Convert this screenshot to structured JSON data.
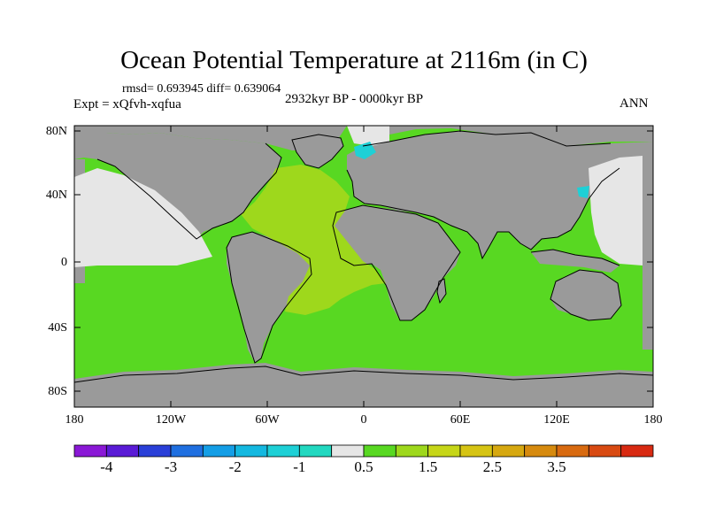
{
  "title": "Ocean Potential Temperature at 2116m (in C)",
  "stats": "rmsd= 0.693945 diff= 0.639064",
  "experiment": "Expt = xQfvh-xqfua",
  "period": "2932kyr BP - 0000kyr BP",
  "season": "ANN",
  "y_ticks": [
    "80N",
    "40N",
    "0",
    "40S",
    "80S"
  ],
  "x_ticks": [
    "180",
    "120W",
    "60W",
    "0",
    "60E",
    "120E",
    "180"
  ],
  "colorbar": {
    "colors": [
      "#8a18d6",
      "#5a1bd6",
      "#2a3fd8",
      "#1f6fe0",
      "#149ee6",
      "#14b8e0",
      "#1ed0d6",
      "#22d8c0",
      "#e6e6e6",
      "#58d822",
      "#9ed81c",
      "#c6d618",
      "#d6c414",
      "#d6a810",
      "#d68a0e",
      "#d86a10",
      "#d84a12",
      "#d82a12"
    ],
    "labels": [
      "-4",
      "-3",
      "-2",
      "-1",
      "0.5",
      "1.5",
      "2.5",
      "3.5"
    ]
  },
  "map_colors": {
    "land": "#9a9a9a",
    "ocean_main": "#58d822",
    "atlantic_warm": "#9ed81c",
    "neutral": "#e6e6e6",
    "cool_patch": "#1ed0d6"
  }
}
